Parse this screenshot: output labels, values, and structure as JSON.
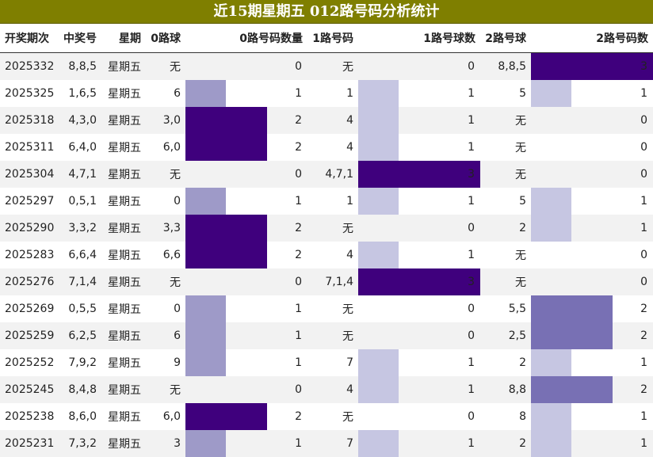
{
  "title": "近15期星期五 012路号码分析统计",
  "headers": [
    "开奖期次",
    "中奖号",
    "星期",
    "0路球",
    "0路号码数量",
    "1路号码",
    "1路号球数",
    "2路号球",
    "2路号码数"
  ],
  "colors": {
    "title_bg": "#7f7f00",
    "bar_level_3": "#3f007d",
    "bar_level_2": "#7870b4",
    "bar_level_1": "#9e9ac8",
    "bar_light": "#c6c6e2"
  },
  "rows": [
    {
      "period": "2025332",
      "numbers": "8,8,5",
      "weekday": "星期五",
      "r0": "无",
      "c0": "0",
      "r1": "无",
      "c1": "0",
      "r2": "8,8,5",
      "c2": "3"
    },
    {
      "period": "2025325",
      "numbers": "1,6,5",
      "weekday": "星期五",
      "r0": "6",
      "c0": "1",
      "r1": "1",
      "c1": "1",
      "r2": "5",
      "c2": "1"
    },
    {
      "period": "2025318",
      "numbers": "4,3,0",
      "weekday": "星期五",
      "r0": "3,0",
      "c0": "2",
      "r1": "4",
      "c1": "1",
      "r2": "无",
      "c2": "0"
    },
    {
      "period": "2025311",
      "numbers": "6,4,0",
      "weekday": "星期五",
      "r0": "6,0",
      "c0": "2",
      "r1": "4",
      "c1": "1",
      "r2": "无",
      "c2": "0"
    },
    {
      "period": "2025304",
      "numbers": "4,7,1",
      "weekday": "星期五",
      "r0": "无",
      "c0": "0",
      "r1": "4,7,1",
      "c1": "3",
      "r2": "无",
      "c2": "0"
    },
    {
      "period": "2025297",
      "numbers": "0,5,1",
      "weekday": "星期五",
      "r0": "0",
      "c0": "1",
      "r1": "1",
      "c1": "1",
      "r2": "5",
      "c2": "1"
    },
    {
      "period": "2025290",
      "numbers": "3,3,2",
      "weekday": "星期五",
      "r0": "3,3",
      "c0": "2",
      "r1": "无",
      "c1": "0",
      "r2": "2",
      "c2": "1"
    },
    {
      "period": "2025283",
      "numbers": "6,6,4",
      "weekday": "星期五",
      "r0": "6,6",
      "c0": "2",
      "r1": "4",
      "c1": "1",
      "r2": "无",
      "c2": "0"
    },
    {
      "period": "2025276",
      "numbers": "7,1,4",
      "weekday": "星期五",
      "r0": "无",
      "c0": "0",
      "r1": "7,1,4",
      "c1": "3",
      "r2": "无",
      "c2": "0"
    },
    {
      "period": "2025269",
      "numbers": "0,5,5",
      "weekday": "星期五",
      "r0": "0",
      "c0": "1",
      "r1": "无",
      "c1": "0",
      "r2": "5,5",
      "c2": "2"
    },
    {
      "period": "2025259",
      "numbers": "6,2,5",
      "weekday": "星期五",
      "r0": "6",
      "c0": "1",
      "r1": "无",
      "c1": "0",
      "r2": "2,5",
      "c2": "2"
    },
    {
      "period": "2025252",
      "numbers": "7,9,2",
      "weekday": "星期五",
      "r0": "9",
      "c0": "1",
      "r1": "7",
      "c1": "1",
      "r2": "2",
      "c2": "1"
    },
    {
      "period": "2025245",
      "numbers": "8,4,8",
      "weekday": "星期五",
      "r0": "无",
      "c0": "0",
      "r1": "4",
      "c1": "1",
      "r2": "8,8",
      "c2": "2"
    },
    {
      "period": "2025238",
      "numbers": "8,6,0",
      "weekday": "星期五",
      "r0": "6,0",
      "c0": "2",
      "r1": "无",
      "c1": "0",
      "r2": "8",
      "c2": "1"
    },
    {
      "period": "2025231",
      "numbers": "7,3,2",
      "weekday": "星期五",
      "r0": "3",
      "c0": "1",
      "r1": "7",
      "c1": "1",
      "r2": "2",
      "c2": "1"
    }
  ]
}
